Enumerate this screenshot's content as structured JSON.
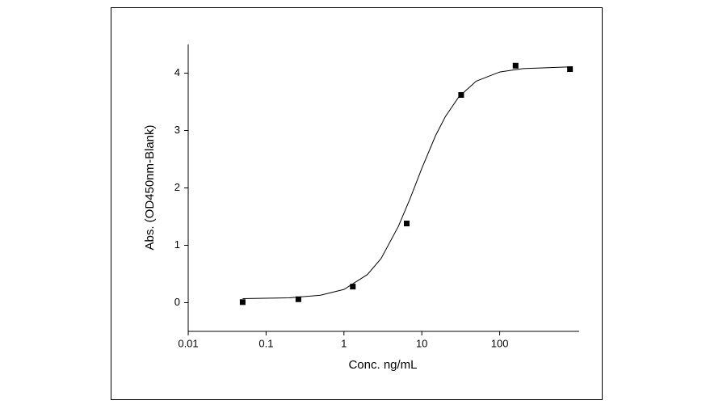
{
  "chart_data": {
    "type": "scatter",
    "x_label": "Conc. ng/mL",
    "y_label": "Abs. (OD450nm-Blank)",
    "x_scale": "log",
    "xlim": [
      0.01,
      1000
    ],
    "xticks": [
      0.01,
      0.1,
      1,
      10,
      100
    ],
    "ylim": [
      -0.5,
      4.5
    ],
    "yticks": [
      0,
      1,
      2,
      3,
      4
    ],
    "series": [
      {
        "mode": "markers",
        "color": "#000000",
        "x": [
          0.05,
          0.26,
          1.3,
          6.4,
          32,
          160,
          800
        ],
        "values": [
          0.01,
          0.06,
          0.28,
          1.38,
          3.62,
          4.13,
          4.07
        ]
      },
      {
        "mode": "line",
        "color": "#000000",
        "x": [
          0.05,
          0.2,
          0.5,
          1,
          2,
          3,
          5,
          7,
          10,
          15,
          20,
          30,
          50,
          100,
          200,
          800
        ],
        "values": [
          0.07,
          0.085,
          0.13,
          0.23,
          0.49,
          0.77,
          1.33,
          1.8,
          2.34,
          2.91,
          3.24,
          3.59,
          3.86,
          4.02,
          4.08,
          4.11
        ]
      }
    ]
  }
}
